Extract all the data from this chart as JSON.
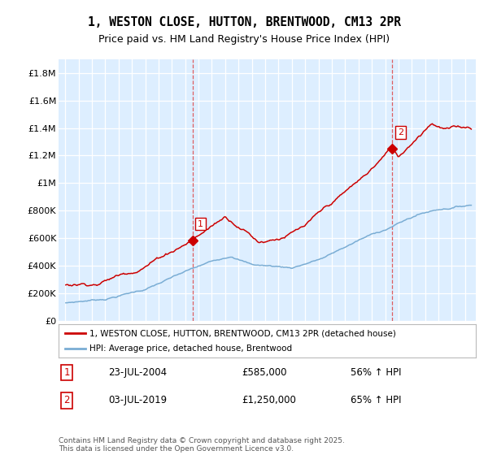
{
  "title_line1": "1, WESTON CLOSE, HUTTON, BRENTWOOD, CM13 2PR",
  "title_line2": "Price paid vs. HM Land Registry's House Price Index (HPI)",
  "legend_label1": "1, WESTON CLOSE, HUTTON, BRENTWOOD, CM13 2PR (detached house)",
  "legend_label2": "HPI: Average price, detached house, Brentwood",
  "line1_color": "#cc0000",
  "line2_color": "#7aadd4",
  "vline_color": "#dd4444",
  "annotation1_label": "1",
  "annotation1_year": 2004.542,
  "annotation1_value": 585000,
  "annotation2_label": "2",
  "annotation2_year": 2019.5,
  "annotation2_value": 1250000,
  "footer_text": "Contains HM Land Registry data © Crown copyright and database right 2025.\nThis data is licensed under the Open Government Licence v3.0.",
  "ylim": [
    0,
    1900000
  ],
  "yticks": [
    0,
    200000,
    400000,
    600000,
    800000,
    1000000,
    1200000,
    1400000,
    1600000,
    1800000
  ],
  "ytick_labels": [
    "£0",
    "£200K",
    "£400K",
    "£600K",
    "£800K",
    "£1M",
    "£1.2M",
    "£1.4M",
    "£1.6M",
    "£1.8M"
  ],
  "chart_bg_color": "#ddeeff",
  "fig_bg_color": "#ffffff",
  "grid_color": "#ffffff",
  "title_fontsize": 10.5,
  "subtitle_fontsize": 9
}
